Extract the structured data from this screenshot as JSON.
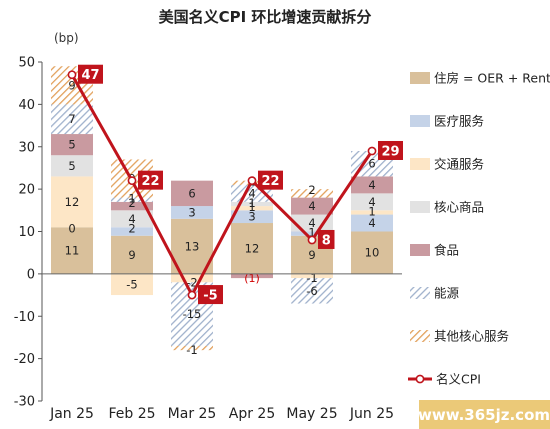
{
  "chart_data": {
    "type": "bar",
    "title": "美国名义CPI 环比增速贡献拆分",
    "unit_label": "(bp)",
    "ylim": [
      -30,
      50
    ],
    "yticks": [
      "50",
      "40",
      "30",
      "20",
      "10",
      "0",
      "-10",
      "-20",
      "-30"
    ],
    "categories": [
      "Jan 25",
      "Feb 25",
      "Mar 25",
      "Apr 25",
      "May 25",
      "Jun 25"
    ],
    "series": [
      {
        "name": "住房 = OER + Rent",
        "color": "#d9c09b",
        "pattern": "solid",
        "values": [
          11,
          9,
          13,
          12,
          9,
          10
        ],
        "labels": [
          "11",
          "9",
          "13",
          "12",
          "9",
          "10"
        ]
      },
      {
        "name": "医疗服务",
        "color": "#c5d3e8",
        "pattern": "solid",
        "values": [
          0,
          2,
          3,
          3,
          1,
          4
        ],
        "labels": [
          "0",
          "2",
          "3",
          "3",
          "1",
          "4"
        ]
      },
      {
        "name": "交通服务",
        "color": "#fde6c6",
        "pattern": "solid",
        "values": [
          12,
          -5,
          -2,
          1,
          -1,
          1
        ],
        "labels": [
          "12",
          "-5",
          "-2",
          "1",
          "-1",
          "1"
        ]
      },
      {
        "name": "核心商品",
        "color": "#e2e2e2",
        "pattern": "solid",
        "values": [
          5,
          4,
          0,
          1,
          4,
          4
        ],
        "labels": [
          "5",
          "4",
          "",
          "1",
          "4",
          "4"
        ]
      },
      {
        "name": "食品",
        "color": "#c99aa0",
        "pattern": "solid",
        "values": [
          5,
          2,
          6,
          -1,
          4,
          4
        ],
        "labels": [
          "5",
          "2",
          "6",
          "(1)",
          "4",
          "4"
        ]
      },
      {
        "name": "能源",
        "color": "#9fb1cc",
        "pattern": "hatch",
        "values": [
          7,
          1,
          -15,
          4,
          -6,
          6
        ],
        "labels": [
          "7",
          "1",
          "-15",
          "4",
          "-6",
          "6"
        ]
      },
      {
        "name": "其他核心服务",
        "color": "#e2a15c",
        "pattern": "hatch",
        "values": [
          9,
          9,
          -1,
          1,
          2,
          0
        ],
        "labels": [
          "9",
          "9",
          "-1",
          "1",
          "2",
          ""
        ]
      }
    ],
    "line": {
      "name": "名义CPI",
      "color": "#c0141c",
      "values": [
        47,
        22,
        -5,
        22,
        8,
        29
      ]
    },
    "grid": false,
    "legend_position": "right"
  },
  "watermark": "www.365jz.com"
}
